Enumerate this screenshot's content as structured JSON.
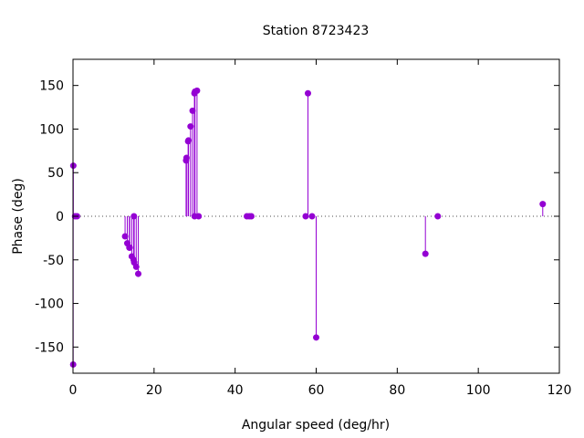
{
  "chart_data": {
    "type": "scatter",
    "style": "impulse-stem",
    "title": "Station 8723423",
    "xlabel": "Angular speed (deg/hr)",
    "ylabel": "Phase (deg)",
    "xlim": [
      0,
      120
    ],
    "ylim": [
      -180,
      180
    ],
    "xticks": [
      0,
      20,
      40,
      60,
      80,
      100,
      120
    ],
    "yticks": [
      -150,
      -100,
      -50,
      0,
      50,
      100,
      150
    ],
    "xtick_labels": [
      "0",
      "20",
      "40",
      "60",
      "80",
      "100",
      "120"
    ],
    "ytick_labels": [
      "-150",
      "-100",
      "-50",
      "0",
      "50",
      "100",
      "150"
    ],
    "zero_line": "dotted",
    "color": "#9400d3",
    "points": [
      {
        "x": 0.04,
        "y": -170
      },
      {
        "x": 0.08,
        "y": 58
      },
      {
        "x": 0.5,
        "y": 0
      },
      {
        "x": 1.0,
        "y": 0
      },
      {
        "x": 12.85,
        "y": -23
      },
      {
        "x": 13.4,
        "y": -31
      },
      {
        "x": 13.9,
        "y": -36
      },
      {
        "x": 14.0,
        "y": -36
      },
      {
        "x": 14.5,
        "y": -46
      },
      {
        "x": 14.96,
        "y": -50
      },
      {
        "x": 15.04,
        "y": 0
      },
      {
        "x": 15.1,
        "y": -53
      },
      {
        "x": 15.6,
        "y": -58
      },
      {
        "x": 16.1,
        "y": -66
      },
      {
        "x": 27.9,
        "y": 64
      },
      {
        "x": 28.0,
        "y": 67
      },
      {
        "x": 28.4,
        "y": 86
      },
      {
        "x": 28.5,
        "y": 87
      },
      {
        "x": 29.0,
        "y": 103
      },
      {
        "x": 29.5,
        "y": 121
      },
      {
        "x": 29.96,
        "y": 141
      },
      {
        "x": 30.0,
        "y": 0
      },
      {
        "x": 30.1,
        "y": 143
      },
      {
        "x": 30.6,
        "y": 144
      },
      {
        "x": 31.0,
        "y": 0
      },
      {
        "x": 42.9,
        "y": 0
      },
      {
        "x": 43.5,
        "y": 0
      },
      {
        "x": 44.0,
        "y": 0
      },
      {
        "x": 57.4,
        "y": 0
      },
      {
        "x": 57.97,
        "y": 141
      },
      {
        "x": 58.98,
        "y": 0
      },
      {
        "x": 60.0,
        "y": -139
      },
      {
        "x": 86.95,
        "y": -43
      },
      {
        "x": 90.0,
        "y": 0
      },
      {
        "x": 115.9,
        "y": 14
      }
    ]
  }
}
